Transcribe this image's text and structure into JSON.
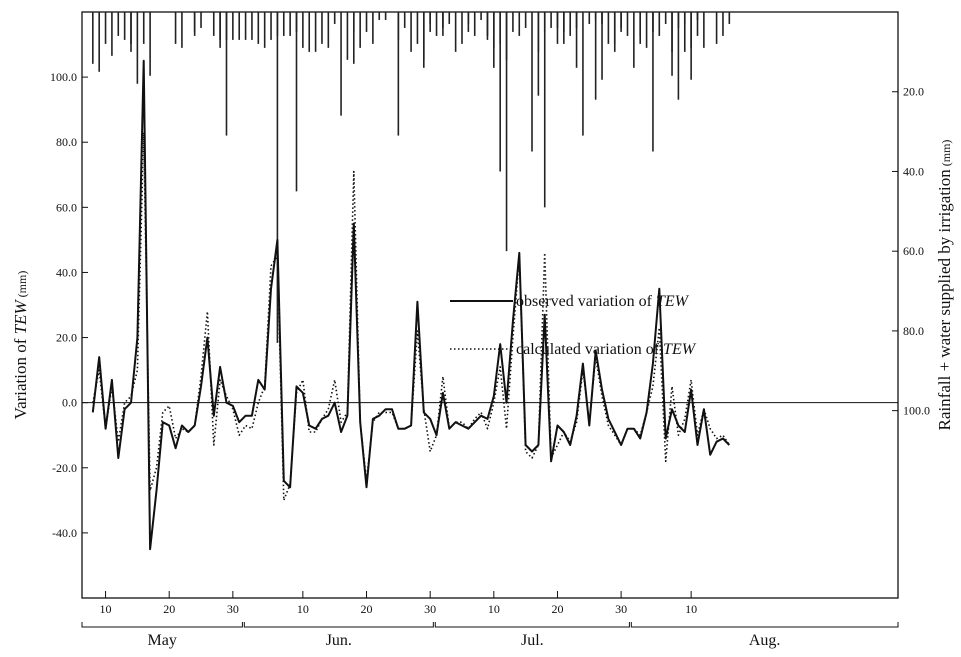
{
  "chart_data": {
    "type": "line",
    "title": "",
    "ylabel": {
      "main": "Variation of ",
      "italic": "TEW",
      "unit": " (mm)"
    },
    "y2label": {
      "main": "Rainfall + water supplied by irrigation",
      "unit": " (mm)"
    },
    "ylim": [
      -60,
      120
    ],
    "y2lim": [
      0,
      147
    ],
    "y_ticks": [
      "100.0",
      "80.0",
      "60.0",
      "40.0",
      "20.0",
      "0.0",
      "-20.0",
      "-40.0"
    ],
    "y_tick_values": [
      100,
      80,
      60,
      40,
      20,
      0,
      -20,
      -40
    ],
    "y2_ticks": [
      "20.0",
      "40.0",
      "60.0",
      "80.0",
      "100.0"
    ],
    "y2_tick_values": [
      20,
      40,
      60,
      80,
      100
    ],
    "x_axis_unit": "day index (1 = 1 May)",
    "xlim": [
      6.3,
      134.5
    ],
    "x_ticks": [
      {
        "label": "10",
        "day": 10
      },
      {
        "label": "20",
        "day": 20
      },
      {
        "label": "30",
        "day": 30
      },
      {
        "label": "10",
        "day": 41
      },
      {
        "label": "20",
        "day": 51
      },
      {
        "label": "30",
        "day": 61
      },
      {
        "label": "10",
        "day": 71
      },
      {
        "label": "20",
        "day": 81
      },
      {
        "label": "30",
        "day": 91
      },
      {
        "label": "10",
        "day": 102
      }
    ],
    "months": [
      {
        "label": "May",
        "start": 6.3,
        "end": 31.5
      },
      {
        "label": "Jun.",
        "start": 31.8,
        "end": 61.5
      },
      {
        "label": "Jul.",
        "start": 61.8,
        "end": 92.3
      },
      {
        "label": "Aug.",
        "start": 92.6,
        "end": 134.5
      }
    ],
    "legend": [
      {
        "text": "observed variation of ",
        "italic": "TEW",
        "style": "solid"
      },
      {
        "text": "calculated variation of ",
        "italic": "TEW",
        "style": "dotted"
      }
    ],
    "legend_position": "center-right",
    "series": [
      {
        "name": "observed variation of TEW",
        "style": "solid",
        "x": [
          8,
          9,
          10,
          11,
          12,
          13,
          14,
          15,
          16,
          17,
          18,
          19,
          20,
          21,
          22,
          23,
          24,
          25,
          26,
          27,
          28,
          29,
          30,
          31,
          32,
          33,
          34,
          35,
          36,
          37,
          38,
          39,
          40,
          41,
          42,
          43,
          44,
          45,
          46,
          47,
          48,
          49,
          50,
          51,
          52,
          53,
          54,
          55,
          56,
          57,
          58,
          59,
          60,
          61,
          62,
          63,
          64,
          65,
          66,
          67,
          68,
          69,
          70,
          71,
          72,
          73,
          74,
          75,
          76,
          77,
          78,
          79,
          80,
          81,
          82,
          83,
          84,
          85,
          86,
          87,
          88,
          89,
          90,
          91,
          92,
          93,
          94,
          95,
          96,
          97,
          98,
          99,
          100,
          101,
          102,
          103,
          104,
          105,
          106,
          107,
          108
        ],
        "y": [
          -3,
          14,
          -8,
          7,
          -17,
          -2,
          0,
          20,
          105,
          -45,
          -27,
          -6,
          -7,
          -14,
          -7,
          -9,
          -7,
          5,
          20,
          -4,
          11,
          0,
          -1,
          -6,
          -4,
          -4,
          7,
          4,
          35,
          50,
          -24,
          -26,
          5,
          3,
          -7,
          -8,
          -5,
          -4,
          0,
          -9,
          -4,
          55,
          -6,
          -26,
          -5,
          -4,
          -2,
          -2,
          -8,
          -8,
          -7,
          31,
          -3,
          -5,
          -10,
          3,
          -8,
          -6,
          -7,
          -8,
          -6,
          -4,
          -5,
          2,
          18,
          0,
          25,
          46,
          -13,
          -15,
          -13,
          27,
          -18,
          -7,
          -9,
          -13,
          -4,
          12,
          -7,
          16,
          4,
          -5,
          -9,
          -13,
          -8,
          -8,
          -11,
          -3,
          12,
          35,
          -11,
          -2,
          -7,
          -9,
          4,
          -13,
          -2,
          -16,
          -12,
          -11,
          -13
        ],
        "x_cut": 125
      },
      {
        "name": "calculated variation of TEW",
        "style": "dotted",
        "x": [
          8,
          9,
          10,
          11,
          12,
          13,
          14,
          15,
          16,
          17,
          18,
          19,
          20,
          21,
          22,
          23,
          24,
          25,
          26,
          27,
          28,
          29,
          30,
          31,
          32,
          33,
          34,
          35,
          36,
          37,
          38,
          39,
          40,
          41,
          42,
          43,
          44,
          45,
          46,
          47,
          48,
          49,
          50,
          51,
          52,
          53,
          54,
          55,
          56,
          57,
          58,
          59,
          60,
          61,
          62,
          63,
          64,
          65,
          66,
          67,
          68,
          69,
          70,
          71,
          72,
          73,
          74,
          75,
          76,
          77,
          78,
          79,
          80,
          81,
          82,
          83,
          84,
          85,
          86,
          87,
          88,
          89,
          90,
          91,
          92,
          93,
          94,
          95,
          96,
          97,
          98,
          99,
          100,
          101,
          102,
          103,
          104,
          105,
          106,
          107,
          108
        ],
        "y": [
          0,
          10,
          -8,
          5,
          -12,
          0,
          2,
          10,
          83,
          -27,
          -20,
          -3,
          -1,
          -11,
          -8,
          -9,
          -7,
          8,
          28,
          -13,
          7,
          2,
          -2,
          -10,
          -7,
          -8,
          0,
          5,
          42,
          45,
          -30,
          -25,
          3,
          7,
          -9,
          -9,
          -5,
          -2,
          7,
          -6,
          -3,
          71,
          -6,
          -24,
          -6,
          -3,
          -3,
          -3,
          -8,
          -8,
          -7,
          22,
          -2,
          -15,
          -10,
          8,
          -8,
          -6,
          -6,
          -8,
          -5,
          -3,
          -8,
          0,
          11,
          -8,
          20,
          45,
          -15,
          -17,
          -13,
          46,
          -17,
          -13,
          -9,
          -12,
          -6,
          10,
          -6,
          14,
          2,
          -7,
          -10,
          -13,
          -8,
          -8,
          -10,
          -3,
          5,
          23,
          -18,
          5,
          -10,
          -5,
          7,
          -10,
          -2,
          -8,
          -11,
          -10,
          -13
        ],
        "x_cut": 125
      },
      {
        "name": "rainfall + irrigation",
        "style": "bars-from-top",
        "x": [
          8,
          9,
          10,
          11,
          12,
          13,
          14,
          15,
          16,
          17,
          21,
          22,
          24,
          25,
          27,
          28,
          29,
          30,
          31,
          32,
          33,
          34,
          35,
          37,
          38,
          39,
          40,
          41,
          43,
          44,
          45,
          47,
          49,
          50,
          51,
          52,
          53,
          54,
          56,
          58,
          59,
          60,
          61,
          62,
          63,
          64,
          65,
          66,
          67,
          68,
          69,
          70,
          71,
          72,
          73,
          74,
          75,
          76,
          77,
          78,
          79,
          80,
          81,
          82,
          83,
          84,
          85,
          86,
          87,
          88,
          89,
          90,
          91,
          92,
          94,
          95,
          96,
          97,
          98,
          99,
          100,
          101,
          102,
          103
        ],
        "y": [
          13,
          15,
          8,
          11,
          6,
          7,
          8,
          18,
          8,
          16,
          8,
          9,
          5,
          4,
          6,
          7,
          7,
          7,
          7,
          7,
          7,
          8,
          9,
          6,
          6,
          6,
          5,
          9,
          10,
          8,
          9,
          26,
          13,
          9,
          5,
          8,
          2,
          2,
          7,
          10,
          8,
          12,
          5,
          6,
          6,
          3,
          10,
          8,
          3,
          6,
          2,
          6,
          9,
          8,
          12,
          5,
          6,
          4,
          35,
          10,
          5,
          4,
          4,
          5,
          6,
          4,
          31,
          3,
          2,
          3,
          8,
          10,
          4,
          6,
          6,
          9,
          5,
          6,
          3,
          10,
          4,
          3,
          9,
          2
        ]
      },
      {
        "name": "rainfall peaks",
        "style": "bars-from-top",
        "x": [
          14,
          24,
          28,
          29,
          36,
          37,
          40,
          42,
          46,
          48,
          49,
          56,
          57,
          60,
          61,
          63,
          67,
          70,
          71,
          72,
          73,
          78,
          79,
          81,
          82,
          84,
          87,
          88,
          90,
          91,
          93,
          94,
          96,
          99,
          100,
          101,
          102,
          103,
          104,
          106,
          107,
          108
        ],
        "y": [
          10,
          6,
          9,
          31,
          7,
          83,
          45,
          10,
          3,
          12,
          5,
          31,
          4,
          14,
          3,
          4,
          5,
          7,
          14,
          40,
          60,
          21,
          49,
          8,
          8,
          14,
          22,
          17,
          8,
          5,
          14,
          8,
          35,
          16,
          22,
          10,
          17,
          6,
          9,
          8,
          6,
          3
        ]
      }
    ]
  }
}
